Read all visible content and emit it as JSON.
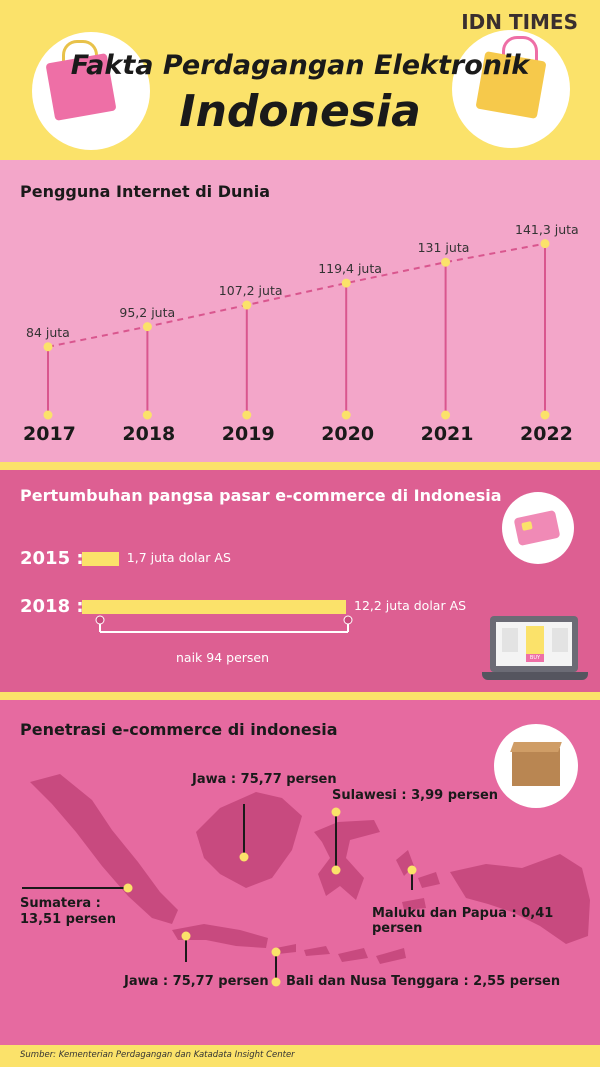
{
  "header": {
    "brand": "IDN TIMES",
    "title_line1": "Fakta Perdagangan Elektronik",
    "title_line2": "Indonesia"
  },
  "chart_data": [
    {
      "type": "line",
      "title": "Pengguna Internet di Dunia",
      "x": [
        "2017",
        "2018",
        "2019",
        "2020",
        "2021",
        "2022"
      ],
      "values": [
        84,
        95.2,
        107.2,
        119.4,
        131,
        141.3
      ],
      "data_labels": [
        "84 juta",
        "95,2 juta",
        "107,2 juta",
        "119,4 juta",
        "131 juta",
        "141,3 juta"
      ],
      "ylim": [
        60,
        150
      ],
      "grid": false
    },
    {
      "type": "bar",
      "orientation": "horizontal",
      "title": "Pertumbuhan pangsa pasar e-commerce di Indonesia",
      "categories": [
        "2015 :",
        "2018 :"
      ],
      "values": [
        1.7,
        12.2
      ],
      "data_labels": [
        "1,7 juta dolar AS",
        "12,2 juta dolar AS"
      ],
      "annotation": "naik 94 persen",
      "xlim": [
        0,
        12.2
      ]
    }
  ],
  "penetration": {
    "title": "Penetrasi e-commerce di indonesia",
    "regions": [
      {
        "id": "jawa-top",
        "label": "Jawa : 75,77 persen"
      },
      {
        "id": "sulawesi",
        "label": "Sulawesi : 3,99 persen"
      },
      {
        "id": "sumatera",
        "label": "Sumatera :\n13,51 persen",
        "line1": "Sumatera :",
        "line2": "13,51 persen"
      },
      {
        "id": "maluku",
        "label": "Maluku dan Papua : 0,41 persen"
      },
      {
        "id": "jawa-bottom",
        "label": "Jawa : 75,77 persen"
      },
      {
        "id": "bali",
        "label": "Bali dan Nusa Tenggara : 2,55 persen"
      }
    ]
  },
  "icons": {
    "card": "credit-card-icon",
    "laptop": "laptop-shop-icon",
    "box": "package-box-icon",
    "bag_left": "shopping-bag-icon",
    "bag_right": "shopping-bag-icon",
    "buy_label": "BUY"
  },
  "colors": {
    "yellow": "#fbe26a",
    "pink_light": "#f3a6c9",
    "pink_mid": "#dd5f92",
    "pink_map": "#e66aa0",
    "line_pink": "#d9568e"
  },
  "source": "Sumber: Kementerian Perdagangan dan Katadata Insight Center"
}
